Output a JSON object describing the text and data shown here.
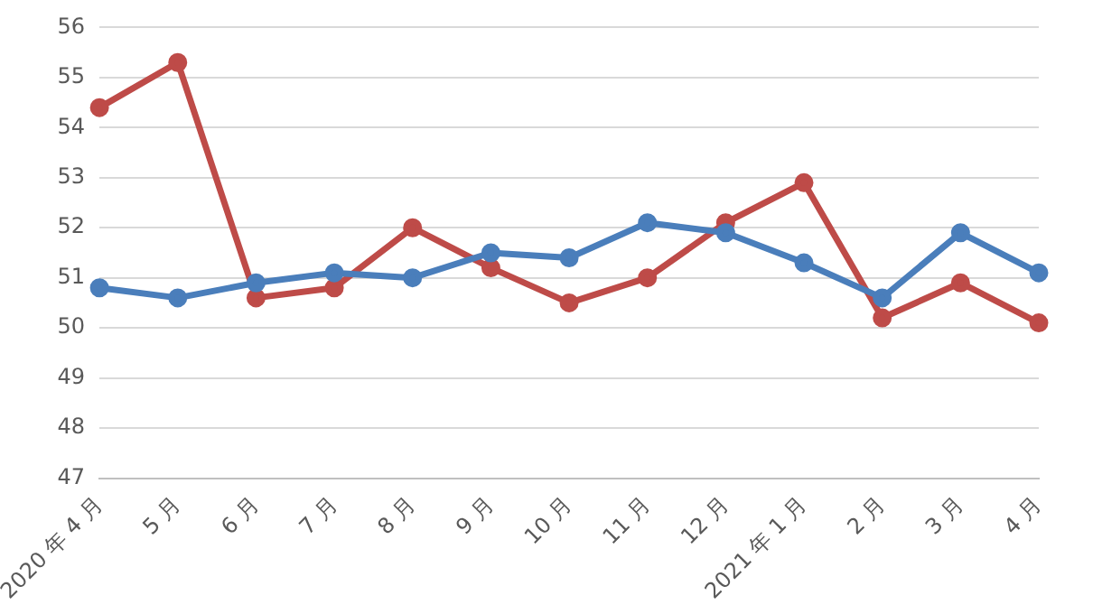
{
  "chart_data": {
    "type": "line",
    "categories": [
      "2020 年 4 月",
      "5 月",
      "6 月",
      "7 月",
      "8 月",
      "9 月",
      "10 月",
      "11 月",
      "12 月",
      "2021 年 1 月",
      "2 月",
      "3 月",
      "4 月"
    ],
    "series": [
      {
        "color": "#4a7ebb",
        "values": [
          50.8,
          50.6,
          50.9,
          51.1,
          51.0,
          51.5,
          51.4,
          52.1,
          51.9,
          51.3,
          50.6,
          51.9,
          51.1
        ]
      },
      {
        "color": "#be4b48",
        "values": [
          54.4,
          55.3,
          50.6,
          50.8,
          52.0,
          51.2,
          50.5,
          51.0,
          52.1,
          52.9,
          50.2,
          50.9,
          50.1
        ]
      }
    ],
    "ylim": [
      47,
      56
    ],
    "yticks": [
      47,
      48,
      49,
      50,
      51,
      52,
      53,
      54,
      55,
      56
    ],
    "grid": "y",
    "marker": "circle",
    "legend": false
  }
}
